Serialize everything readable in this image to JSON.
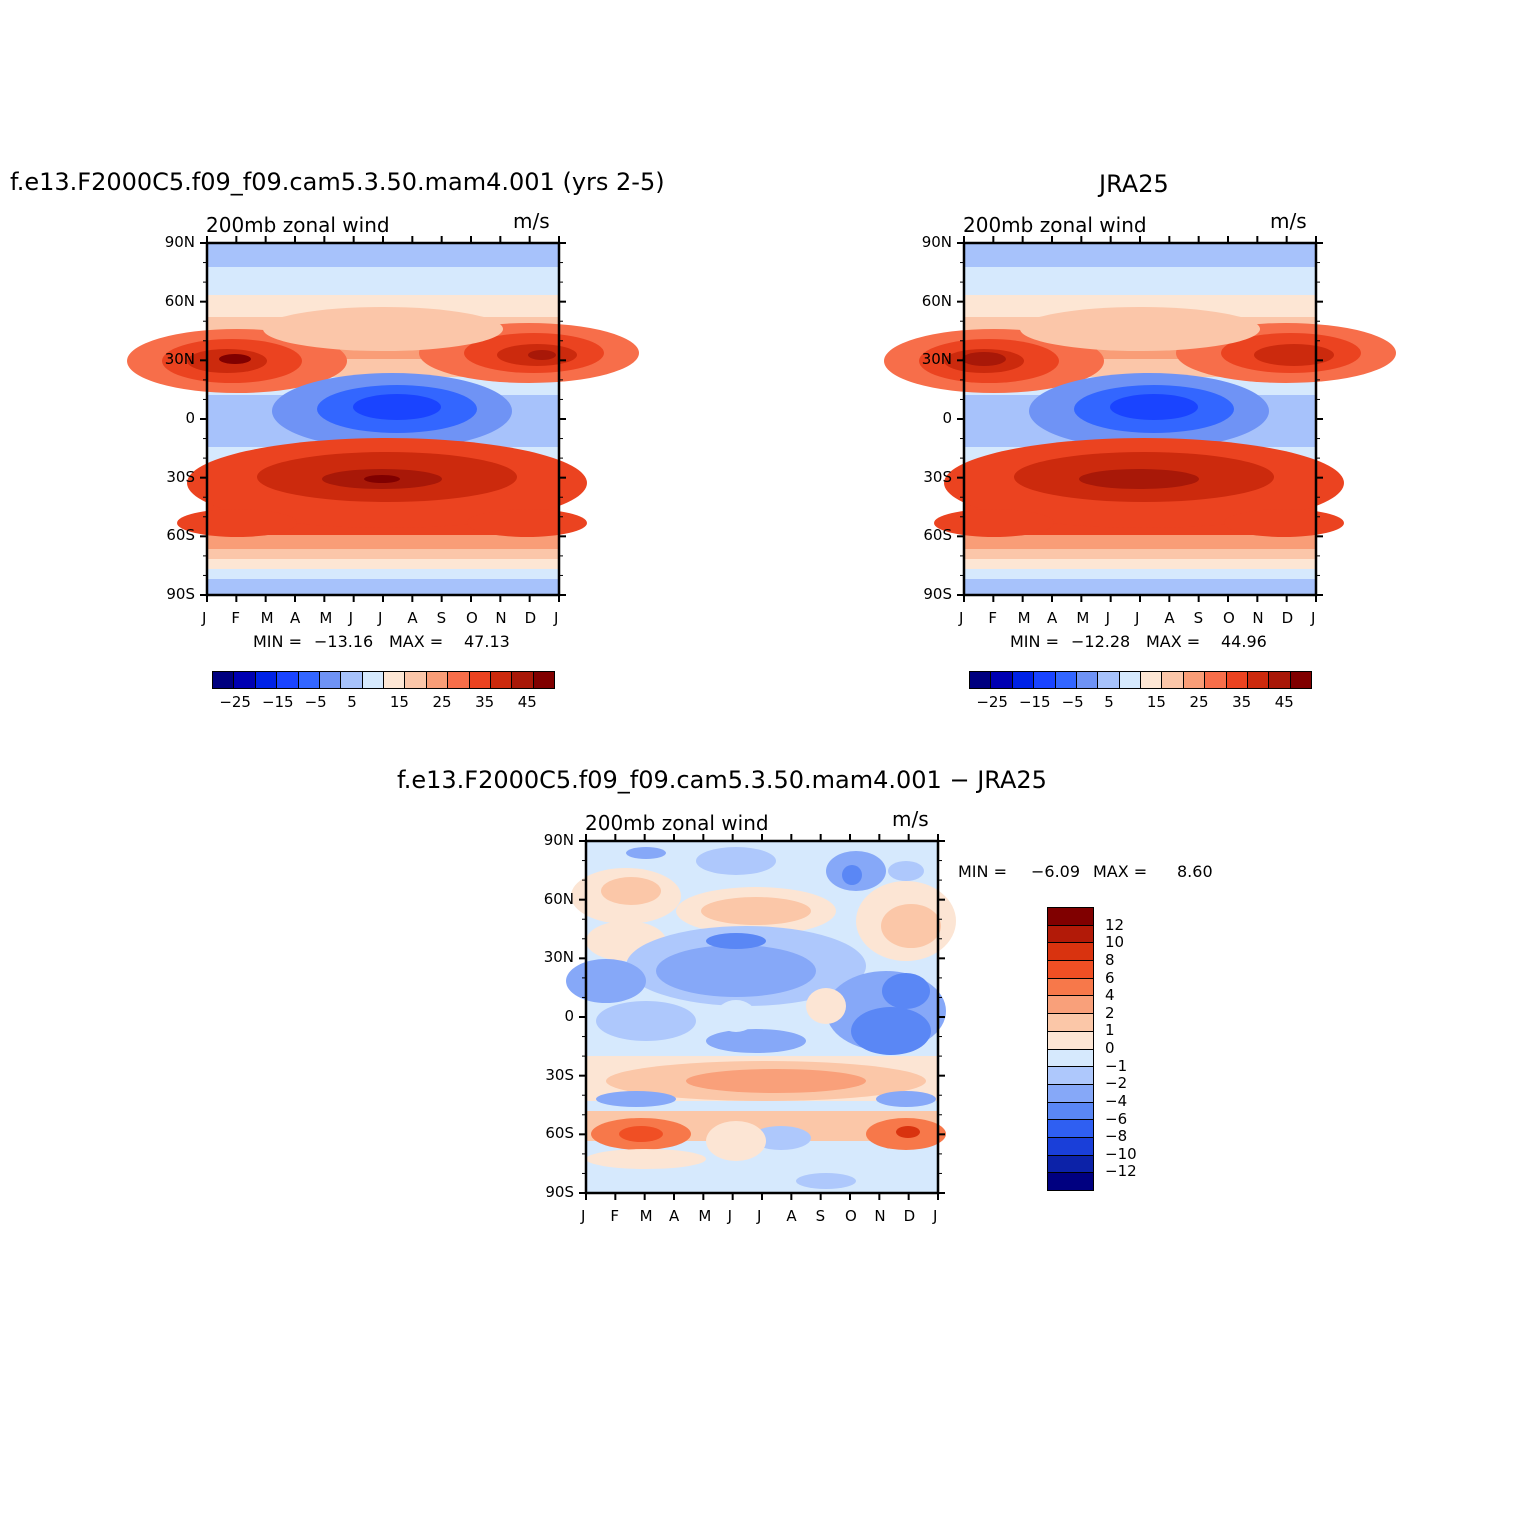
{
  "chart_data": [
    {
      "type": "heatmap",
      "title": "f.e13.F2000C5.f09_f09.cam5.3.50.mam4.001 (yrs 2-5)",
      "subtitle": "200mb zonal wind",
      "units": "m/s",
      "x_ticks": [
        "J",
        "F",
        "M",
        "A",
        "M",
        "J",
        "J",
        "A",
        "S",
        "O",
        "N",
        "D",
        "J"
      ],
      "y_ticks": [
        "90N",
        "60N",
        "30N",
        "0",
        "30S",
        "60S",
        "90S"
      ],
      "min_label": "MIN =",
      "min_value": "−13.16",
      "max_label": "MAX =",
      "max_value": "47.13",
      "colorbar_labels": [
        "−25",
        "−15",
        "−5",
        "5",
        "15",
        "25",
        "35",
        "45"
      ]
    },
    {
      "type": "heatmap",
      "title": "JRA25",
      "subtitle": "200mb zonal wind",
      "units": "m/s",
      "x_ticks": [
        "J",
        "F",
        "M",
        "A",
        "M",
        "J",
        "J",
        "A",
        "S",
        "O",
        "N",
        "D",
        "J"
      ],
      "y_ticks": [
        "90N",
        "60N",
        "30N",
        "0",
        "30S",
        "60S",
        "90S"
      ],
      "min_label": "MIN =",
      "min_value": "−12.28",
      "max_label": "MAX =",
      "max_value": "44.96",
      "colorbar_labels": [
        "−25",
        "−15",
        "−5",
        "5",
        "15",
        "25",
        "35",
        "45"
      ]
    },
    {
      "type": "heatmap",
      "title": "f.e13.F2000C5.f09_f09.cam5.3.50.mam4.001 − JRA25",
      "subtitle": "200mb zonal wind",
      "units": "m/s",
      "x_ticks": [
        "J",
        "F",
        "M",
        "A",
        "M",
        "J",
        "J",
        "A",
        "S",
        "O",
        "N",
        "D",
        "J"
      ],
      "y_ticks": [
        "90N",
        "60N",
        "30N",
        "0",
        "30S",
        "60S",
        "90S"
      ],
      "min_label": "MIN =",
      "min_value": "−6.09",
      "max_label": "MAX =",
      "max_value": "8.60",
      "colorbar_labels": [
        "12",
        "10",
        "8",
        "6",
        "4",
        "2",
        "1",
        "0",
        "−1",
        "−2",
        "−4",
        "−6",
        "−8",
        "−10",
        "−12"
      ]
    }
  ],
  "colors": {
    "abs_scale": [
      "#00007f",
      "#0000b2",
      "#0022e6",
      "#1a44ff",
      "#3366ff",
      "#6f93f5",
      "#a7c2fb",
      "#d6e9fd",
      "#fde6d4",
      "#fbc6a9",
      "#f99d77",
      "#f76e4a",
      "#eb4320",
      "#cc2a0d",
      "#a81808",
      "#800000"
    ],
    "diff_scale": [
      "#800000",
      "#b21a08",
      "#d9330f",
      "#f04f24",
      "#f7784a",
      "#f9a07a",
      "#fbc7a8",
      "#fce5d4",
      "#d6e9fd",
      "#aec8fc",
      "#86a8f8",
      "#5a87f5",
      "#2f5ff2",
      "#1a3fd9",
      "#0c22a8",
      "#000080"
    ]
  }
}
